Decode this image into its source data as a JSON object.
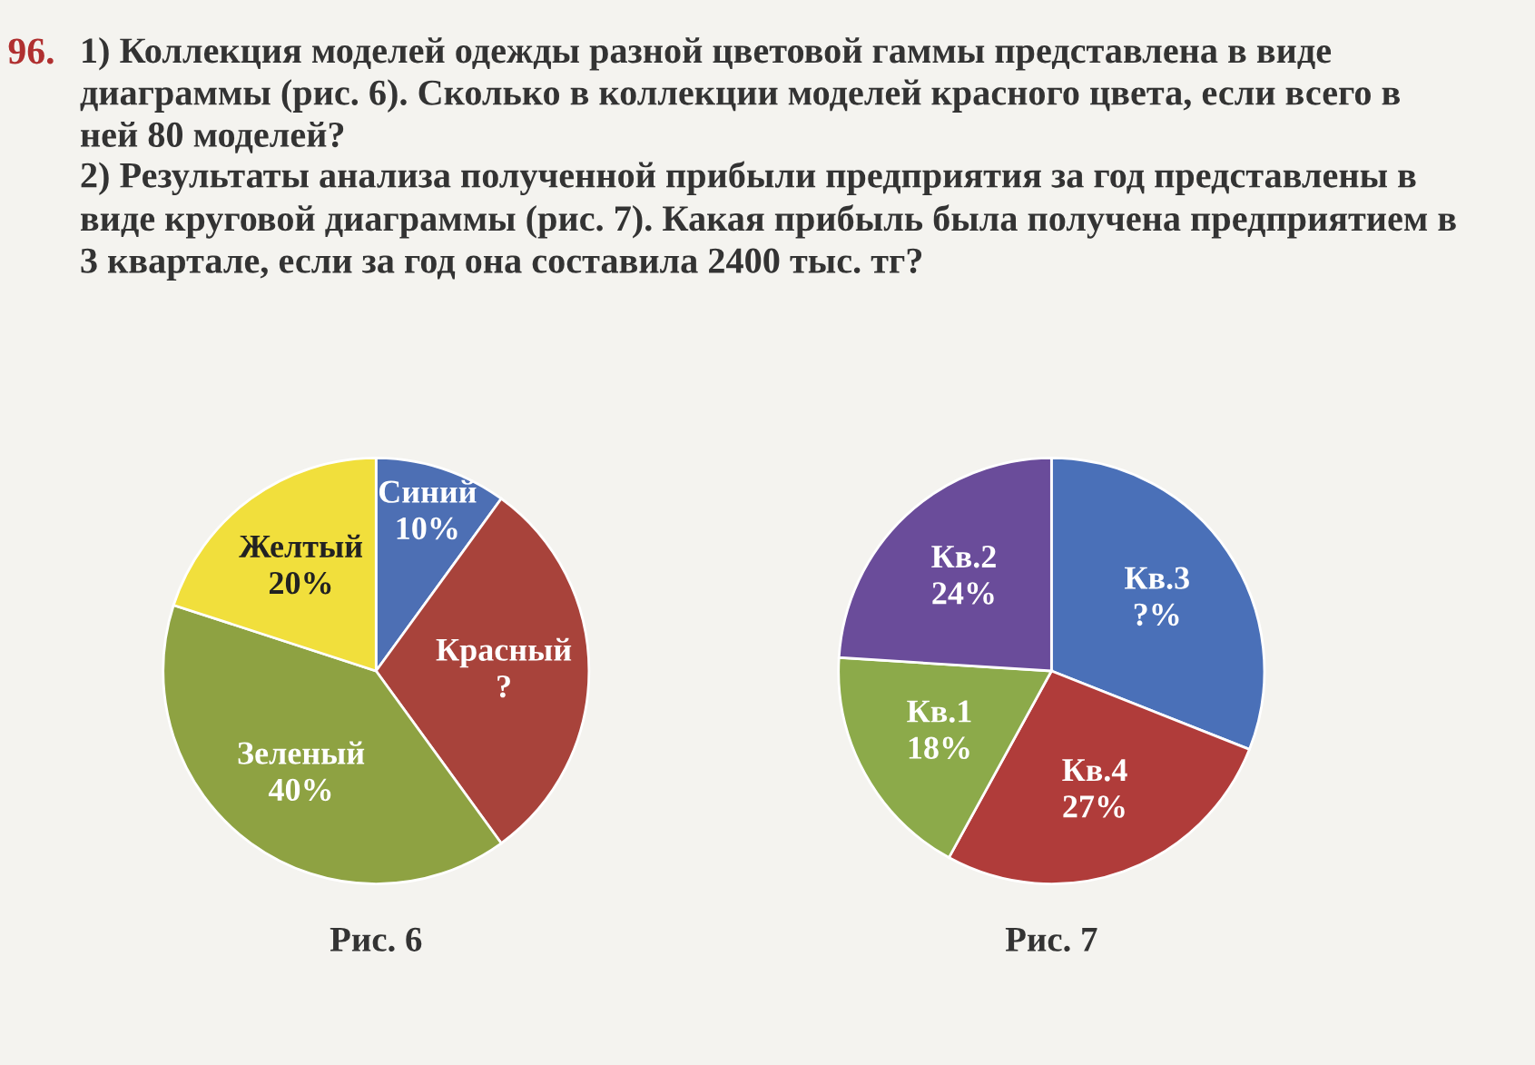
{
  "chart_data": [
    {
      "type": "pie",
      "title": "Рис. 6",
      "categories": [
        "Синий",
        "Красный",
        "Зеленый",
        "Желтый"
      ],
      "values": [
        10,
        30,
        40,
        20
      ],
      "value_labels": [
        "10%",
        "?",
        "40%",
        "20%"
      ],
      "colors": [
        "#4d6fb4",
        "#a8433b",
        "#8ea242",
        "#f1df3c"
      ],
      "annotations": [
        "96.",
        "1) Коллекция моделей одежды разной цветовой гаммы представлена в виде диаграммы (рис. 6). Сколько в коллекции моделей красного цвета, если всего в ней 80 моделей?"
      ]
    },
    {
      "type": "pie",
      "title": "Рис. 7",
      "categories": [
        "Кв.3",
        "Кв.4",
        "Кв.1",
        "Кв.2"
      ],
      "values": [
        31,
        27,
        18,
        24
      ],
      "value_labels": [
        "?%",
        "27%",
        "18%",
        "24%"
      ],
      "colors": [
        "#4a70b8",
        "#b03c3a",
        "#8caa4a",
        "#6a4c9a"
      ],
      "annotations": [
        "2) Результаты анализа полученной прибыли предприятия за год представлены в виде круговой диаграммы (рис. 7). Какая прибыль была получена предприятием в 3 квартале, если за год она составила 2400 тыс. тг?"
      ]
    }
  ]
}
